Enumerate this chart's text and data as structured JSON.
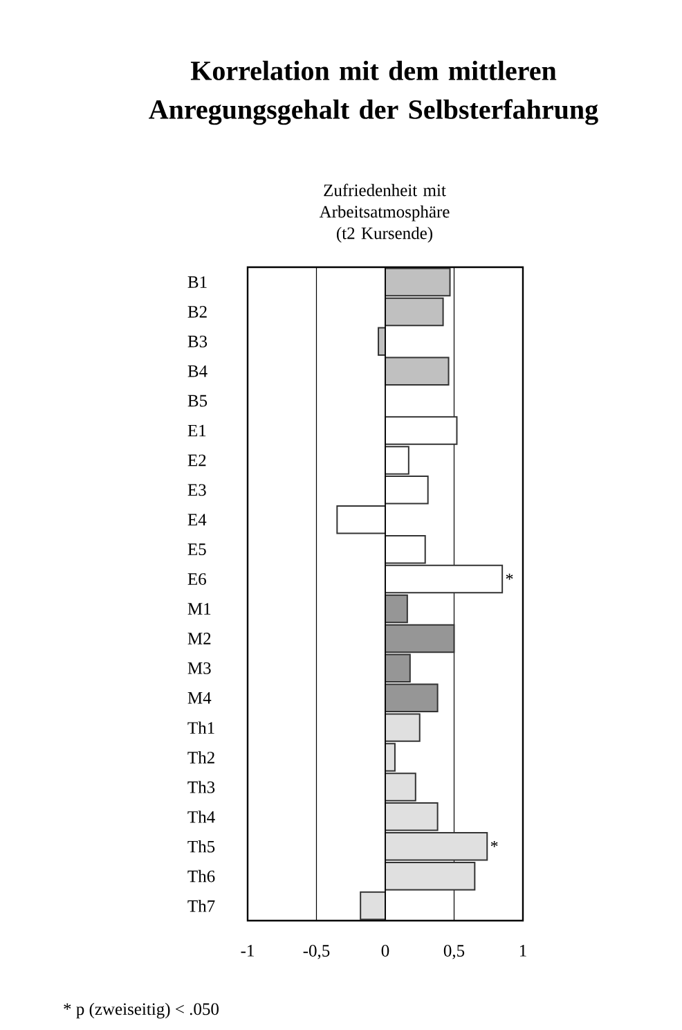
{
  "chart_data": {
    "type": "bar",
    "orientation": "horizontal",
    "title": "Korrelation mit dem mittleren Anregungsgehalt der Selbsterfahrung",
    "subtitle": "Zufriedenheit mit Arbeitsatmosphäre (t2 Kursende)",
    "categories": [
      "B1",
      "B2",
      "B3",
      "B4",
      "B5",
      "E1",
      "E2",
      "E3",
      "E4",
      "E5",
      "E6",
      "M1",
      "M2",
      "M3",
      "M4",
      "Th1",
      "Th2",
      "Th3",
      "Th4",
      "Th5",
      "Th6",
      "Th7"
    ],
    "values": [
      0.47,
      0.42,
      -0.05,
      0.46,
      null,
      0.52,
      0.17,
      0.31,
      -0.35,
      0.29,
      0.85,
      0.16,
      0.5,
      0.18,
      0.38,
      0.25,
      0.07,
      0.22,
      0.38,
      0.74,
      0.65,
      -0.18
    ],
    "colors": [
      "#c0c0c0",
      "#c0c0c0",
      "#c0c0c0",
      "#c0c0c0",
      "#c0c0c0",
      "#ffffff",
      "#ffffff",
      "#ffffff",
      "#ffffff",
      "#ffffff",
      "#ffffff",
      "#969696",
      "#969696",
      "#969696",
      "#969696",
      "#e0e0e0",
      "#e0e0e0",
      "#e0e0e0",
      "#e0e0e0",
      "#e0e0e0",
      "#e0e0e0",
      "#e0e0e0"
    ],
    "xlim": [
      -1,
      1
    ],
    "xticks": [
      -1,
      {
        "value": -0.5,
        "label": "-0,5"
      },
      0,
      {
        "value": 0.5,
        "label": "0,5"
      },
      1
    ],
    "grid": "x",
    "annotations": [
      {
        "text": "*",
        "x": 0.85,
        "y": "E6"
      },
      {
        "text": "*",
        "x": 0.74,
        "y": "Th5"
      },
      "* p (zweiseitig) < .050"
    ]
  }
}
